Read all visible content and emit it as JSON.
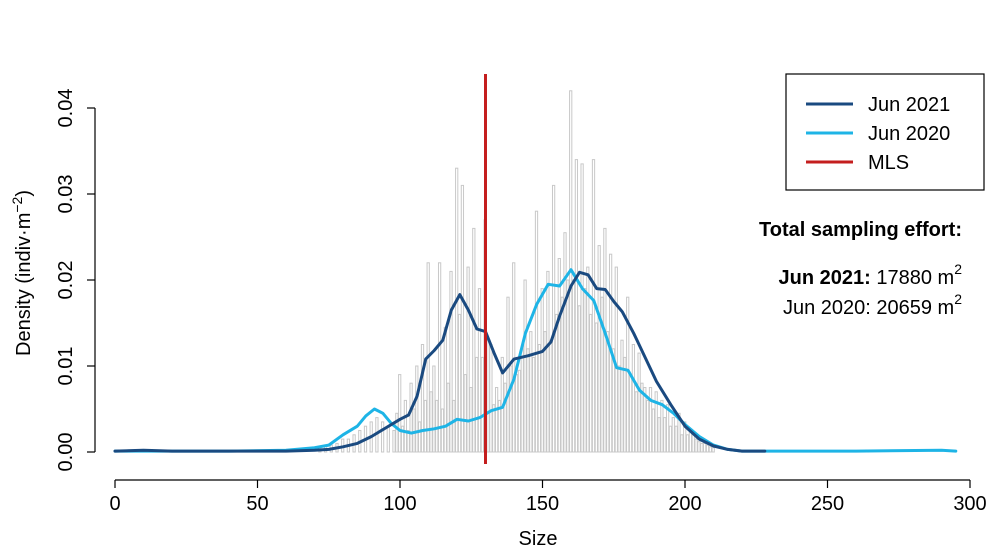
{
  "chart_data": {
    "type": "line",
    "xlabel": "Size",
    "ylabel": "Density (indiv·m",
    "ylabel_sup": "−2",
    "ylabel_close": ")",
    "xlim": [
      0,
      300
    ],
    "ylim": [
      0,
      0.04
    ],
    "x_ticks": [
      0,
      50,
      100,
      150,
      200,
      250,
      300
    ],
    "x_tick_labels": [
      "0",
      "50",
      "100",
      "150",
      "200",
      "250",
      "300"
    ],
    "y_ticks": [
      0,
      0.01,
      0.02,
      0.03,
      0.04
    ],
    "y_tick_labels": [
      "0.00",
      "0.01",
      "0.02",
      "0.03",
      "0.04"
    ],
    "grid": false,
    "legend_position": "top-right",
    "legend": [
      {
        "label": "Jun 2021",
        "color": "#1a4a80"
      },
      {
        "label": "Jun 2020",
        "color": "#1eb4e6"
      },
      {
        "label": "MLS",
        "color": "#c41e1e"
      }
    ],
    "mls_line_x": 130,
    "annotation": {
      "title": "Total sampling effort:",
      "line1_bold": "Jun 2021:",
      "line1_value": "17880 m",
      "line2": "Jun 2020: 20659 m",
      "unit_sup": "2"
    },
    "histogram": {
      "color": "#c8c8c8",
      "bin_width": 1,
      "bins": [
        [
          72,
          0.0005
        ],
        [
          74,
          0.0008
        ],
        [
          76,
          0.0008
        ],
        [
          78,
          0.001
        ],
        [
          80,
          0.0015
        ],
        [
          82,
          0.0015
        ],
        [
          84,
          0.002
        ],
        [
          86,
          0.0025
        ],
        [
          88,
          0.003
        ],
        [
          90,
          0.0035
        ],
        [
          92,
          0.004
        ],
        [
          94,
          0.0035
        ],
        [
          96,
          0.003
        ],
        [
          98,
          0.0025
        ],
        [
          99,
          0.0045
        ],
        [
          100,
          0.009
        ],
        [
          101,
          0.003
        ],
        [
          102,
          0.006
        ],
        [
          103,
          0.0025
        ],
        [
          104,
          0.008
        ],
        [
          105,
          0.005
        ],
        [
          106,
          0.01
        ],
        [
          107,
          0.0035
        ],
        [
          108,
          0.0125
        ],
        [
          109,
          0.006
        ],
        [
          110,
          0.022
        ],
        [
          111,
          0.007
        ],
        [
          112,
          0.01
        ],
        [
          113,
          0.006
        ],
        [
          114,
          0.022
        ],
        [
          115,
          0.005
        ],
        [
          116,
          0.0145
        ],
        [
          117,
          0.008
        ],
        [
          118,
          0.021
        ],
        [
          119,
          0.006
        ],
        [
          120,
          0.033
        ],
        [
          121,
          0.016
        ],
        [
          122,
          0.031
        ],
        [
          123,
          0.009
        ],
        [
          124,
          0.0215
        ],
        [
          125,
          0.0075
        ],
        [
          126,
          0.026
        ],
        [
          127,
          0.011
        ],
        [
          128,
          0.019
        ],
        [
          129,
          0.011
        ],
        [
          130,
          0.027
        ],
        [
          131,
          0.013
        ],
        [
          132,
          0.0125
        ],
        [
          133,
          0.0055
        ],
        [
          134,
          0.0075
        ],
        [
          135,
          0.006
        ],
        [
          136,
          0.011
        ],
        [
          137,
          0.008
        ],
        [
          138,
          0.018
        ],
        [
          139,
          0.01
        ],
        [
          140,
          0.022
        ],
        [
          141,
          0.009
        ],
        [
          142,
          0.0095
        ],
        [
          143,
          0.012
        ],
        [
          144,
          0.02
        ],
        [
          145,
          0.012
        ],
        [
          146,
          0.014
        ],
        [
          147,
          0.011
        ],
        [
          148,
          0.028
        ],
        [
          149,
          0.0125
        ],
        [
          150,
          0.019
        ],
        [
          151,
          0.014
        ],
        [
          152,
          0.021
        ],
        [
          153,
          0.013
        ],
        [
          154,
          0.031
        ],
        [
          155,
          0.016
        ],
        [
          156,
          0.0225
        ],
        [
          157,
          0.018
        ],
        [
          158,
          0.0255
        ],
        [
          159,
          0.02
        ],
        [
          160,
          0.042
        ],
        [
          161,
          0.02
        ],
        [
          162,
          0.034
        ],
        [
          163,
          0.017
        ],
        [
          164,
          0.0335
        ],
        [
          165,
          0.019
        ],
        [
          166,
          0.0215
        ],
        [
          167,
          0.016
        ],
        [
          168,
          0.034
        ],
        [
          169,
          0.015
        ],
        [
          170,
          0.024
        ],
        [
          171,
          0.018
        ],
        [
          172,
          0.026
        ],
        [
          173,
          0.014
        ],
        [
          174,
          0.023
        ],
        [
          175,
          0.012
        ],
        [
          176,
          0.0215
        ],
        [
          177,
          0.01
        ],
        [
          178,
          0.013
        ],
        [
          179,
          0.011
        ],
        [
          180,
          0.018
        ],
        [
          181,
          0.009
        ],
        [
          182,
          0.0125
        ],
        [
          183,
          0.007
        ],
        [
          184,
          0.0115
        ],
        [
          185,
          0.008
        ],
        [
          186,
          0.0075
        ],
        [
          187,
          0.006
        ],
        [
          188,
          0.0075
        ],
        [
          189,
          0.005
        ],
        [
          190,
          0.007
        ],
        [
          191,
          0.004
        ],
        [
          192,
          0.006
        ],
        [
          193,
          0.004
        ],
        [
          194,
          0.0055
        ],
        [
          195,
          0.003
        ],
        [
          196,
          0.004
        ],
        [
          197,
          0.003
        ],
        [
          198,
          0.0045
        ],
        [
          199,
          0.002
        ],
        [
          200,
          0.0035
        ],
        [
          201,
          0.002
        ],
        [
          202,
          0.0025
        ],
        [
          203,
          0.002
        ],
        [
          204,
          0.0015
        ],
        [
          205,
          0.0012
        ],
        [
          206,
          0.001
        ],
        [
          207,
          0.001
        ],
        [
          208,
          0.0008
        ],
        [
          209,
          0.0006
        ],
        [
          210,
          0.0005
        ]
      ]
    },
    "series": [
      {
        "name": "Jun 2021",
        "color": "#1a4a80",
        "x": [
          0,
          10,
          20,
          30,
          40,
          50,
          60,
          70,
          75,
          80,
          85,
          90,
          95,
          100,
          103,
          106,
          109,
          112,
          115,
          118,
          121,
          124,
          127,
          130,
          133,
          136,
          140,
          145,
          150,
          153,
          156,
          160,
          163,
          166,
          169,
          172,
          175,
          178,
          182,
          186,
          190,
          195,
          200,
          205,
          210,
          215,
          220,
          228
        ],
        "y": [
          0.0001,
          0.0002,
          0.0001,
          0.0001,
          0.0001,
          0.0001,
          0.0001,
          0.0002,
          0.0003,
          0.0006,
          0.001,
          0.0018,
          0.0028,
          0.0038,
          0.0043,
          0.0065,
          0.0108,
          0.0118,
          0.013,
          0.0165,
          0.0183,
          0.0165,
          0.0143,
          0.014,
          0.0115,
          0.0092,
          0.0108,
          0.0112,
          0.0117,
          0.0128,
          0.0158,
          0.0193,
          0.0209,
          0.0206,
          0.019,
          0.0189,
          0.0175,
          0.0163,
          0.0138,
          0.011,
          0.0082,
          0.0055,
          0.003,
          0.0015,
          0.0007,
          0.0003,
          0.0001,
          0.0001
        ]
      },
      {
        "name": "Jun 2020",
        "color": "#1eb4e6",
        "x": [
          0,
          20,
          40,
          60,
          70,
          75,
          80,
          85,
          88,
          91,
          94,
          97,
          100,
          104,
          108,
          112,
          116,
          120,
          124,
          128,
          132,
          136,
          140,
          144,
          148,
          152,
          156,
          160,
          164,
          168,
          172,
          176,
          180,
          184,
          188,
          192,
          196,
          200,
          205,
          210,
          215,
          220,
          230,
          260,
          290,
          295
        ],
        "y": [
          0.0001,
          0.0001,
          0.0001,
          0.0002,
          0.0005,
          0.0008,
          0.002,
          0.003,
          0.0042,
          0.005,
          0.0045,
          0.0033,
          0.0025,
          0.0022,
          0.0025,
          0.0027,
          0.003,
          0.0038,
          0.0036,
          0.004,
          0.0048,
          0.0052,
          0.0085,
          0.0138,
          0.0172,
          0.0195,
          0.0193,
          0.0212,
          0.019,
          0.0176,
          0.0138,
          0.0098,
          0.0095,
          0.0072,
          0.006,
          0.0055,
          0.0045,
          0.0032,
          0.0018,
          0.0008,
          0.0003,
          0.0001,
          0.0001,
          0.0001,
          0.0002,
          0.0001
        ]
      }
    ]
  }
}
